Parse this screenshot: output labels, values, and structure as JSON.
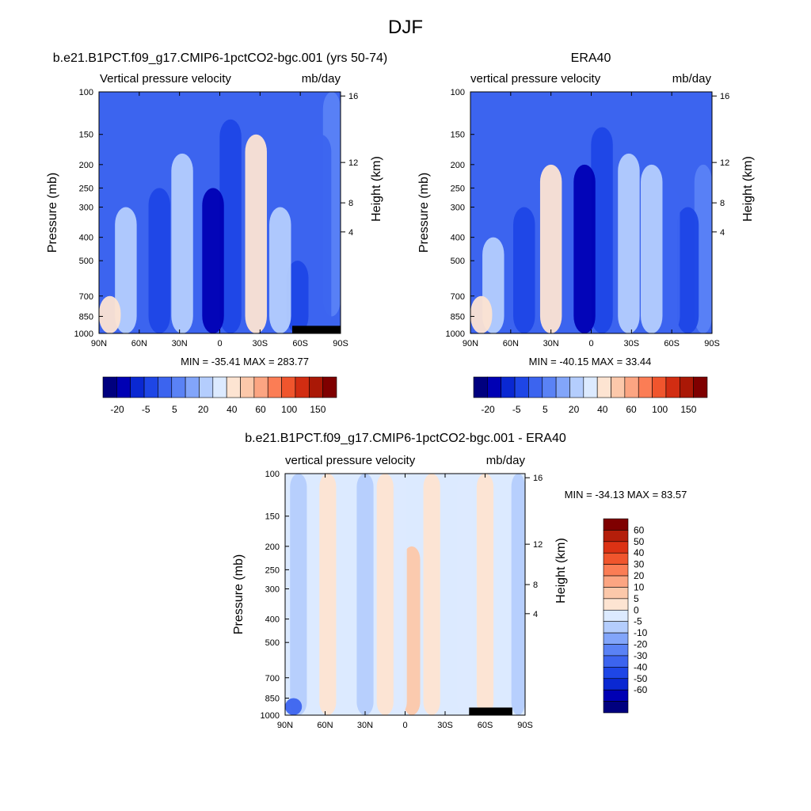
{
  "page": {
    "title": "DJF"
  },
  "palette": {
    "contour": [
      "#00007f",
      "#0000b4",
      "#0a28d2",
      "#1e46e6",
      "#3c64ef",
      "#5a82f5",
      "#82a5fa",
      "#b4cdfd",
      "#dceaff",
      "#fde4d2",
      "#fcc8aa",
      "#fca582",
      "#fb7d55",
      "#f0552d",
      "#d22d12",
      "#aa1806",
      "#7f0000"
    ],
    "white": "#ffffff"
  },
  "axes_common": {
    "ylabel": "Pressure (mb)",
    "ylabel_right": "Height (km)",
    "x_ticks": [
      "90N",
      "60N",
      "30N",
      "0",
      "30S",
      "60S",
      "90S"
    ],
    "y_ticks": [
      "100",
      "150",
      "200",
      "250",
      "300",
      "400",
      "500",
      "700",
      "850",
      "1000"
    ],
    "y_right_ticks": [
      "16",
      "12",
      "8",
      "4"
    ]
  },
  "panels": [
    {
      "title": "b.e21.B1PCT.f09_g17.CMIP6-1pctCO2-bgc.001 (yrs 50-74)",
      "left_label": "Vertical pressure velocity",
      "right_label": "mb/day",
      "minmax": "MIN = -35.41  MAX = 283.77"
    },
    {
      "title": "ERA40",
      "left_label": "vertical pressure velocity",
      "right_label": "mb/day",
      "minmax": "MIN = -40.15  MAX =  33.44"
    },
    {
      "title": "b.e21.B1PCT.f09_g17.CMIP6-1pctCO2-bgc.001 - ERA40",
      "left_label": "vertical pressure velocity",
      "right_label": "mb/day",
      "minmax": "MIN = -34.13  MAX =  83.57"
    }
  ],
  "colorbars": {
    "abs_labels": [
      "-20",
      "-5",
      "5",
      "20",
      "40",
      "60",
      "100",
      "150"
    ],
    "diff_levels": [
      "60",
      "50",
      "40",
      "30",
      "20",
      "10",
      "5",
      "0",
      "-5",
      "-10",
      "-20",
      "-30",
      "-40",
      "-50",
      "-60"
    ]
  },
  "chart_data": [
    {
      "type": "heatmap",
      "title": "b.e21.B1PCT.f09_g17.CMIP6-1pctCO2-bgc.001 (yrs 50-74)",
      "variable": "Vertical pressure velocity",
      "units": "mb/day",
      "xlabel": "",
      "ylabel": "Pressure (mb)",
      "ylabel_right": "Height (km)",
      "x_ticks": [
        "90N",
        "60N",
        "30N",
        "0",
        "30S",
        "60S",
        "90S"
      ],
      "y_ticks": [
        100,
        150,
        200,
        250,
        300,
        400,
        500,
        700,
        850,
        1000
      ],
      "y_right_ticks": [
        16,
        12,
        8,
        4
      ],
      "ylim": [
        1000,
        100
      ],
      "y_scale": "log",
      "min": -35.41,
      "max": 283.77,
      "colorbar_labels": [
        -20,
        -5,
        5,
        20,
        40,
        60,
        100,
        150
      ],
      "features": [
        {
          "lat": -85,
          "p_range": [
            850,
            100
          ],
          "omega": -5
        },
        {
          "lat": -75,
          "p_range": [
            1000,
            150
          ],
          "omega": -10
        },
        {
          "lat": -58,
          "p_range": [
            1000,
            500
          ],
          "omega": -20
        },
        {
          "lat": -45,
          "p_range": [
            1000,
            300
          ],
          "omega": 5
        },
        {
          "lat": -27,
          "p_range": [
            1000,
            150
          ],
          "omega": 20
        },
        {
          "lat": -8,
          "p_range": [
            1000,
            130
          ],
          "omega": -20
        },
        {
          "lat": 5,
          "p_range": [
            1000,
            250
          ],
          "omega": -40
        },
        {
          "lat": 28,
          "p_range": [
            1000,
            180
          ],
          "omega": 5
        },
        {
          "lat": 45,
          "p_range": [
            1000,
            250
          ],
          "omega": -20
        },
        {
          "lat": 70,
          "p_range": [
            1000,
            300
          ],
          "omega": 5
        },
        {
          "lat": 85,
          "p_range": [
            1000,
            700
          ],
          "omega": 20
        }
      ]
    },
    {
      "type": "heatmap",
      "title": "ERA40",
      "variable": "vertical pressure velocity",
      "units": "mb/day",
      "xlabel": "",
      "ylabel": "Pressure (mb)",
      "ylabel_right": "Height (km)",
      "x_ticks": [
        "90N",
        "60N",
        "30N",
        "0",
        "30S",
        "60S",
        "90S"
      ],
      "y_ticks": [
        100,
        150,
        200,
        250,
        300,
        400,
        500,
        700,
        850,
        1000
      ],
      "y_right_ticks": [
        16,
        12,
        8,
        4
      ],
      "ylim": [
        1000,
        100
      ],
      "y_scale": "log",
      "min": -40.15,
      "max": 33.44,
      "colorbar_labels": [
        -20,
        -5,
        5,
        20,
        40,
        60,
        100,
        150
      ],
      "features": [
        {
          "lat": -85,
          "p_range": [
            1000,
            200
          ],
          "omega": -5
        },
        {
          "lat": -72,
          "p_range": [
            1000,
            300
          ],
          "omega": -20
        },
        {
          "lat": -58,
          "p_range": [
            1000,
            250
          ],
          "omega": -10
        },
        {
          "lat": -45,
          "p_range": [
            1000,
            200
          ],
          "omega": 5
        },
        {
          "lat": -28,
          "p_range": [
            1000,
            180
          ],
          "omega": 5
        },
        {
          "lat": -8,
          "p_range": [
            1000,
            140
          ],
          "omega": -20
        },
        {
          "lat": 5,
          "p_range": [
            1000,
            200
          ],
          "omega": -40
        },
        {
          "lat": 30,
          "p_range": [
            1000,
            200
          ],
          "omega": 20
        },
        {
          "lat": 50,
          "p_range": [
            1000,
            300
          ],
          "omega": -20
        },
        {
          "lat": 73,
          "p_range": [
            1000,
            400
          ],
          "omega": 5
        },
        {
          "lat": 87,
          "p_range": [
            1000,
            700
          ],
          "omega": 20
        }
      ]
    },
    {
      "type": "heatmap",
      "title": "b.e21.B1PCT.f09_g17.CMIP6-1pctCO2-bgc.001 - ERA40",
      "variable": "vertical pressure velocity",
      "units": "mb/day",
      "xlabel": "",
      "ylabel": "Pressure (mb)",
      "ylabel_right": "Height (km)",
      "x_ticks": [
        "90N",
        "60N",
        "30N",
        "0",
        "30S",
        "60S",
        "90S"
      ],
      "y_ticks": [
        100,
        150,
        200,
        250,
        300,
        400,
        500,
        700,
        850,
        1000
      ],
      "y_right_ticks": [
        16,
        12,
        8,
        4
      ],
      "ylim": [
        1000,
        100
      ],
      "y_scale": "log",
      "min": -34.13,
      "max": 83.57,
      "colorbar_levels": [
        -60,
        -50,
        -40,
        -30,
        -20,
        -10,
        -5,
        0,
        5,
        10,
        20,
        30,
        40,
        50,
        60
      ],
      "features": [
        {
          "lat": -86,
          "p_range": [
            1000,
            100
          ],
          "omega": -5
        },
        {
          "lat": -60,
          "p_range": [
            1000,
            100
          ],
          "omega": 5
        },
        {
          "lat": -45,
          "p_range": [
            1000,
            100
          ],
          "omega": 0
        },
        {
          "lat": -20,
          "p_range": [
            1000,
            100
          ],
          "omega": 5
        },
        {
          "lat": -5,
          "p_range": [
            1000,
            200
          ],
          "omega": 10
        },
        {
          "lat": 5,
          "p_range": [
            1000,
            100
          ],
          "omega": 0
        },
        {
          "lat": 15,
          "p_range": [
            1000,
            100
          ],
          "omega": 5
        },
        {
          "lat": 30,
          "p_range": [
            1000,
            100
          ],
          "omega": -5
        },
        {
          "lat": 58,
          "p_range": [
            1000,
            100
          ],
          "omega": 5
        },
        {
          "lat": 80,
          "p_range": [
            1000,
            100
          ],
          "omega": -5
        },
        {
          "lat": 84,
          "p_range": [
            1000,
            850
          ],
          "omega": -30
        }
      ]
    }
  ]
}
